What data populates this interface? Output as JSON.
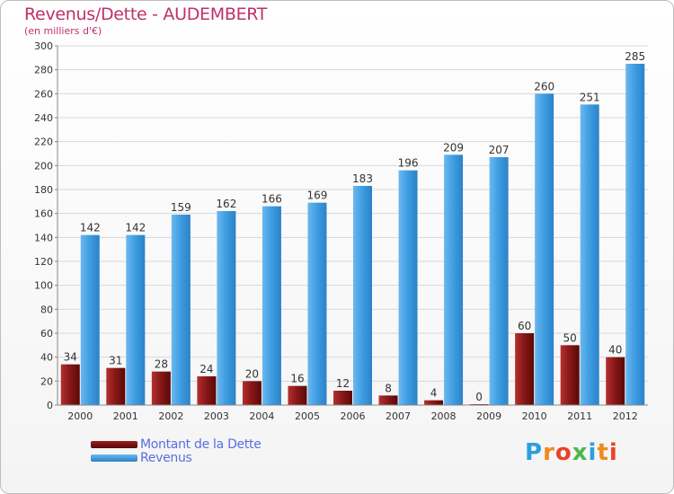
{
  "chart_data": {
    "type": "bar",
    "title": "Revenus/Dette - AUDEMBERT",
    "subtitle": "(en milliers d'€)",
    "categories": [
      "2000",
      "2001",
      "2002",
      "2003",
      "2004",
      "2005",
      "2006",
      "2007",
      "2008",
      "2009",
      "2010",
      "2011",
      "2012"
    ],
    "series": [
      {
        "name": "Montant de la Dette",
        "color": "#7a1010",
        "values": [
          34,
          31,
          28,
          24,
          20,
          16,
          12,
          8,
          4,
          0,
          60,
          50,
          40
        ]
      },
      {
        "name": "Revenus",
        "color": "#3a9ae0",
        "values": [
          142,
          142,
          159,
          162,
          166,
          169,
          183,
          196,
          209,
          207,
          260,
          251,
          285
        ]
      }
    ],
    "ylim": [
      0,
      300
    ],
    "yticks": [
      0,
      20,
      40,
      60,
      80,
      100,
      120,
      140,
      160,
      180,
      200,
      220,
      240,
      260,
      280,
      300
    ],
    "grid": true,
    "legend": "bottom-left"
  },
  "logo": {
    "text": "Proxiti"
  }
}
